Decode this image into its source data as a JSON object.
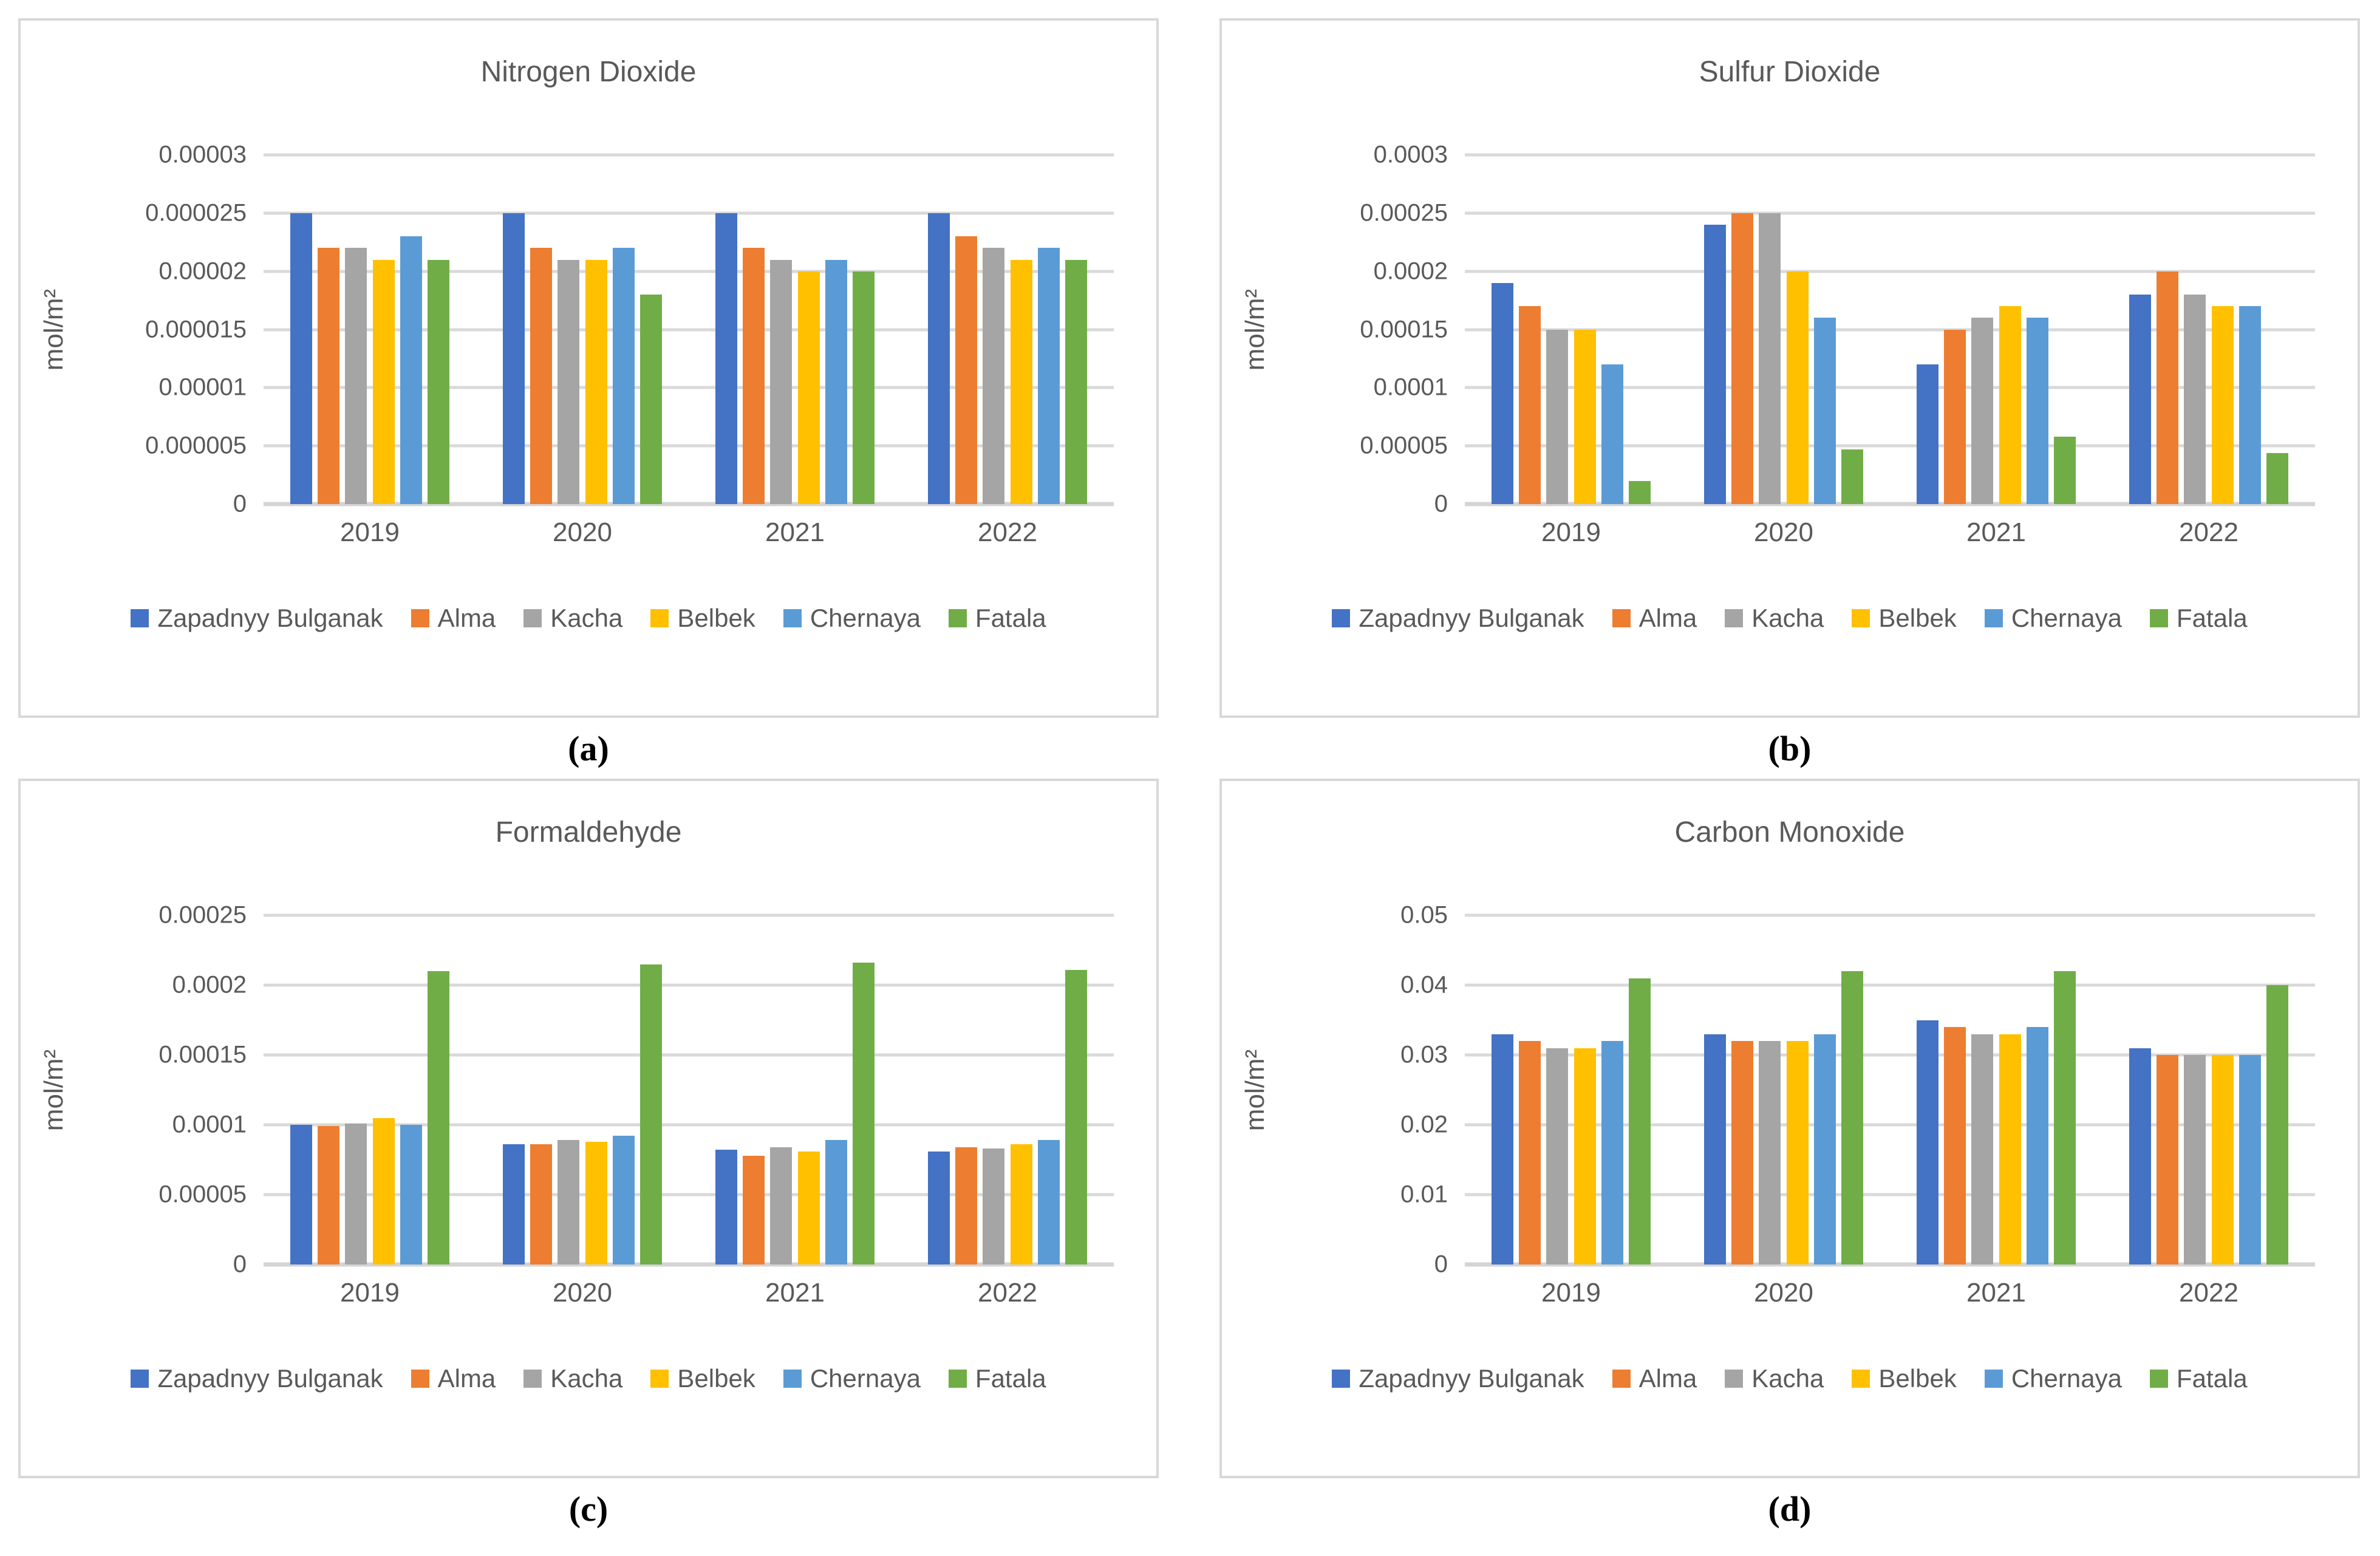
{
  "figure": {
    "background": "#ffffff",
    "panel_border_color": "#D8D8D8",
    "gridline_color": "#D9D9D9",
    "text_color": "#595959"
  },
  "series_colors": [
    "#4472C4",
    "#ED7D31",
    "#A5A5A5",
    "#FFC000",
    "#5B9BD5",
    "#70AD47"
  ],
  "legend_series": [
    "Zapadnyy Bulganak",
    "Alma",
    "Kacha",
    "Belbek",
    "Chernaya",
    "Fatala"
  ],
  "chart_data": [
    {
      "type": "bar",
      "panel_label": "(a)",
      "title": "Nitrogen Dioxide",
      "xlabel": "",
      "ylabel": "mol/m²",
      "categories": [
        "2019",
        "2020",
        "2021",
        "2022"
      ],
      "ylim": [
        0,
        3e-05
      ],
      "grid": true,
      "legend_position": "bottom",
      "yticks": [
        {
          "value": 0,
          "label": "0"
        },
        {
          "value": 5e-06,
          "label": "0.000005"
        },
        {
          "value": 1e-05,
          "label": "0.00001"
        },
        {
          "value": 1.5e-05,
          "label": "0.000015"
        },
        {
          "value": 2e-05,
          "label": "0.00002"
        },
        {
          "value": 2.5e-05,
          "label": "0.000025"
        },
        {
          "value": 3e-05,
          "label": "0.00003"
        }
      ],
      "series": [
        {
          "name": "Zapadnyy Bulganak",
          "values": [
            2.5e-05,
            2.5e-05,
            2.5e-05,
            2.5e-05
          ]
        },
        {
          "name": "Alma",
          "values": [
            2.2e-05,
            2.2e-05,
            2.2e-05,
            2.3e-05
          ]
        },
        {
          "name": "Kacha",
          "values": [
            2.2e-05,
            2.1e-05,
            2.1e-05,
            2.2e-05
          ]
        },
        {
          "name": "Belbek",
          "values": [
            2.1e-05,
            2.1e-05,
            2e-05,
            2.1e-05
          ]
        },
        {
          "name": "Chernaya",
          "values": [
            2.3e-05,
            2.2e-05,
            2.1e-05,
            2.2e-05
          ]
        },
        {
          "name": "Fatala",
          "values": [
            2.1e-05,
            1.8e-05,
            2e-05,
            2.1e-05
          ]
        }
      ]
    },
    {
      "type": "bar",
      "panel_label": "(b)",
      "title": "Sulfur Dioxide",
      "xlabel": "",
      "ylabel": "mol/m²",
      "categories": [
        "2019",
        "2020",
        "2021",
        "2022"
      ],
      "ylim": [
        0,
        0.0003
      ],
      "grid": true,
      "legend_position": "bottom",
      "yticks": [
        {
          "value": 0,
          "label": "0"
        },
        {
          "value": 5e-05,
          "label": "0.00005"
        },
        {
          "value": 0.0001,
          "label": "0.0001"
        },
        {
          "value": 0.00015,
          "label": "0.00015"
        },
        {
          "value": 0.0002,
          "label": "0.0002"
        },
        {
          "value": 0.00025,
          "label": "0.00025"
        },
        {
          "value": 0.0003,
          "label": "0.0003"
        }
      ],
      "series": [
        {
          "name": "Zapadnyy Bulganak",
          "values": [
            0.00019,
            0.00024,
            0.00012,
            0.00018
          ]
        },
        {
          "name": "Alma",
          "values": [
            0.00017,
            0.00025,
            0.00015,
            0.0002
          ]
        },
        {
          "name": "Kacha",
          "values": [
            0.00015,
            0.00025,
            0.00016,
            0.00018
          ]
        },
        {
          "name": "Belbek",
          "values": [
            0.00015,
            0.0002,
            0.00017,
            0.00017
          ]
        },
        {
          "name": "Chernaya",
          "values": [
            0.00012,
            0.00016,
            0.00016,
            0.00017
          ]
        },
        {
          "name": "Fatala",
          "values": [
            2e-05,
            4.7e-05,
            5.8e-05,
            4.4e-05
          ]
        }
      ]
    },
    {
      "type": "bar",
      "panel_label": "(c)",
      "title": "Formaldehyde",
      "xlabel": "",
      "ylabel": "mol/m²",
      "categories": [
        "2019",
        "2020",
        "2021",
        "2022"
      ],
      "ylim": [
        0,
        0.00025
      ],
      "grid": true,
      "legend_position": "bottom",
      "yticks": [
        {
          "value": 0,
          "label": "0"
        },
        {
          "value": 5e-05,
          "label": "0.00005"
        },
        {
          "value": 0.0001,
          "label": "0.0001"
        },
        {
          "value": 0.00015,
          "label": "0.00015"
        },
        {
          "value": 0.0002,
          "label": "0.0002"
        },
        {
          "value": 0.00025,
          "label": "0.00025"
        }
      ],
      "series": [
        {
          "name": "Zapadnyy Bulganak",
          "values": [
            0.0001,
            8.6e-05,
            8.2e-05,
            8.1e-05
          ]
        },
        {
          "name": "Alma",
          "values": [
            9.9e-05,
            8.6e-05,
            7.8e-05,
            8.4e-05
          ]
        },
        {
          "name": "Kacha",
          "values": [
            0.000101,
            8.9e-05,
            8.4e-05,
            8.3e-05
          ]
        },
        {
          "name": "Belbek",
          "values": [
            0.000105,
            8.8e-05,
            8.1e-05,
            8.6e-05
          ]
        },
        {
          "name": "Chernaya",
          "values": [
            0.0001,
            9.2e-05,
            8.9e-05,
            8.9e-05
          ]
        },
        {
          "name": "Fatala",
          "values": [
            0.00021,
            0.000215,
            0.000216,
            0.000211
          ]
        }
      ]
    },
    {
      "type": "bar",
      "panel_label": "(d)",
      "title": "Carbon Monoxide",
      "xlabel": "",
      "ylabel": "mol/m²",
      "categories": [
        "2019",
        "2020",
        "2021",
        "2022"
      ],
      "ylim": [
        0,
        0.05
      ],
      "grid": true,
      "legend_position": "bottom",
      "yticks": [
        {
          "value": 0,
          "label": "0"
        },
        {
          "value": 0.01,
          "label": "0.01"
        },
        {
          "value": 0.02,
          "label": "0.02"
        },
        {
          "value": 0.03,
          "label": "0.03"
        },
        {
          "value": 0.04,
          "label": "0.04"
        },
        {
          "value": 0.05,
          "label": "0.05"
        }
      ],
      "series": [
        {
          "name": "Zapadnyy Bulganak",
          "values": [
            0.033,
            0.033,
            0.035,
            0.031
          ]
        },
        {
          "name": "Alma",
          "values": [
            0.032,
            0.032,
            0.034,
            0.03
          ]
        },
        {
          "name": "Kacha",
          "values": [
            0.031,
            0.032,
            0.033,
            0.03
          ]
        },
        {
          "name": "Belbek",
          "values": [
            0.031,
            0.032,
            0.033,
            0.03
          ]
        },
        {
          "name": "Chernaya",
          "values": [
            0.032,
            0.033,
            0.034,
            0.03
          ]
        },
        {
          "name": "Fatala",
          "values": [
            0.041,
            0.042,
            0.042,
            0.04
          ]
        }
      ]
    }
  ]
}
